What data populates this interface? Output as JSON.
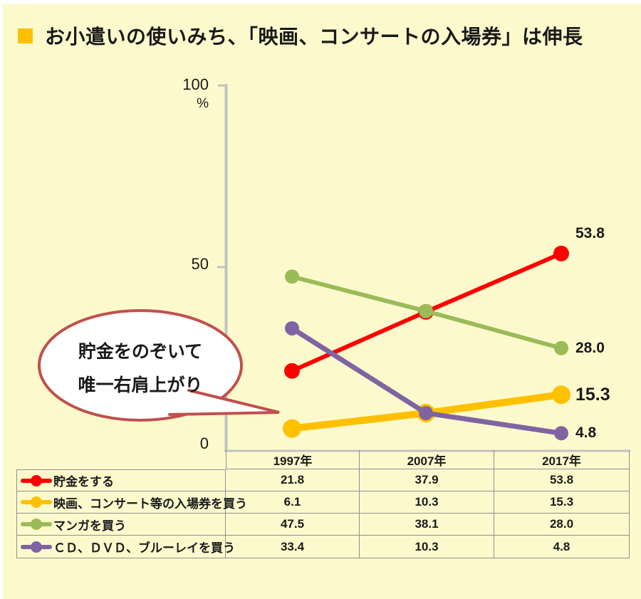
{
  "page": {
    "background": "#FCFACD",
    "margin_color": "#FFFFFF"
  },
  "title": {
    "text": "お小遣いの使いみち、「映画、コンサートの入場券」は伸長",
    "bullet_color": "#FFC000"
  },
  "chart_data": {
    "type": "line",
    "title": "",
    "categories": [
      "1997年",
      "2007年",
      "2017年"
    ],
    "series": [
      {
        "name": "貯金をする",
        "color": "#FF0000",
        "values": [
          21.8,
          37.9,
          53.8
        ],
        "end_label": "53.8",
        "line_width": 6,
        "marker_radius": 11,
        "end_label_dy": -28
      },
      {
        "name": "映画、コンサート等の入場券を買う",
        "color": "#FFC000",
        "values": [
          6.1,
          10.3,
          15.3
        ],
        "end_label": "15.3",
        "line_width": 10,
        "marker_radius": 13,
        "end_label_bold": true
      },
      {
        "name": "マンガを買う",
        "color": "#9BBB59",
        "values": [
          47.5,
          38.1,
          28.0
        ],
        "end_label": "28.0",
        "line_width": 6,
        "marker_radius": 10
      },
      {
        "name": "ＣＤ、ＤＶＤ、ブルーレイを買う",
        "color": "#8064A2",
        "values": [
          33.4,
          10.3,
          4.8
        ],
        "end_label": "4.8",
        "line_width": 7,
        "marker_radius": 10
      }
    ],
    "ylim": [
      0,
      100
    ],
    "y_ticks": {
      "top": "100",
      "unit": "%",
      "mid": "50",
      "zero": "0"
    },
    "axis_color": "#C2C2C2",
    "grid": false,
    "legend_position": "table-below-left-column",
    "annotation": {
      "line1": "貯金をのぞいて",
      "line2": "唯一右肩上がり",
      "border_color": "#C0504D",
      "fill": "#FFFFFF"
    }
  },
  "table": {
    "values": [
      [
        "21.8",
        "37.9",
        "53.8"
      ],
      [
        "6.1",
        "10.3",
        "15.3"
      ],
      [
        "47.5",
        "38.1",
        "28.0"
      ],
      [
        "33.4",
        "10.3",
        "4.8"
      ]
    ]
  }
}
